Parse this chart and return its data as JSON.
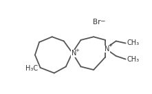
{
  "bg_color": "#ffffff",
  "line_color": "#555555",
  "text_color": "#333333",
  "br_label": "Br",
  "br_minus": "−",
  "n_plus": "+",
  "ch3_left": "H₃C",
  "ch3_right": "CH₃",
  "lw": 1.3,
  "fs": 7.0,
  "fs_small": 5.0
}
